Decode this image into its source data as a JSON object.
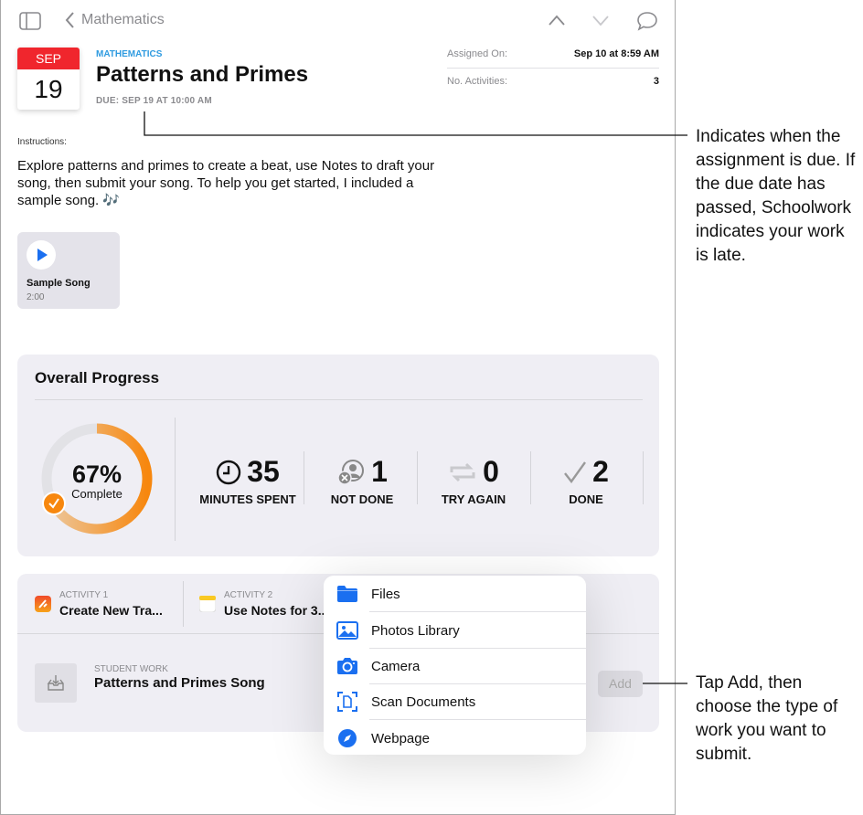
{
  "nav": {
    "back_label": "Mathematics"
  },
  "calendar": {
    "month": "SEP",
    "day": "19"
  },
  "header": {
    "subject": "MATHEMATICS",
    "title": "Patterns and Primes",
    "due": "DUE: SEP 19 AT 10:00 AM"
  },
  "details": [
    {
      "label": "Assigned On:",
      "value": "Sep 10 at 8:59 AM"
    },
    {
      "label": "No. Activities:",
      "value": "3"
    }
  ],
  "instructions": {
    "label": "Instructions:",
    "text": "Explore patterns and primes to create a beat, use Notes to draft your song, then submit your song. To help you get started, I included a sample song. 🎶"
  },
  "attachment": {
    "title": "Sample Song",
    "duration": "2:00"
  },
  "progress": {
    "title": "Overall Progress",
    "percent_label": "67%",
    "percent": 67,
    "complete_label": "Complete",
    "stats": [
      {
        "value": "35",
        "label": "MINUTES SPENT",
        "icon": "clock-icon"
      },
      {
        "value": "1",
        "label": "NOT DONE",
        "icon": "person-x-icon"
      },
      {
        "value": "0",
        "label": "TRY AGAIN",
        "icon": "retry-icon"
      },
      {
        "value": "2",
        "label": "DONE",
        "icon": "checkmark-icon"
      }
    ],
    "colors": {
      "ring": "#f7931e",
      "track": "#e2e2e6"
    }
  },
  "activities": [
    {
      "label": "ACTIVITY 1",
      "title": "Create New Tra...",
      "icon": "garageband-icon"
    },
    {
      "label": "ACTIVITY 2",
      "title": "Use Notes for 3...",
      "icon": "notes-icon"
    }
  ],
  "student_work": {
    "label": "STUDENT WORK",
    "title": "Patterns and Primes Song",
    "add_label": "Add"
  },
  "menu": [
    {
      "label": "Files",
      "icon": "folder-icon"
    },
    {
      "label": "Photos Library",
      "icon": "photo-icon"
    },
    {
      "label": "Camera",
      "icon": "camera-icon"
    },
    {
      "label": "Scan Documents",
      "icon": "scan-icon"
    },
    {
      "label": "Webpage",
      "icon": "compass-icon"
    }
  ],
  "annotations": {
    "due": "Indicates when the assignment is due. If the due date has passed, Schoolwork indicates your work is late.",
    "add": "Tap Add, then choose the type of work you want to submit."
  },
  "accent": "#1a6ff0"
}
